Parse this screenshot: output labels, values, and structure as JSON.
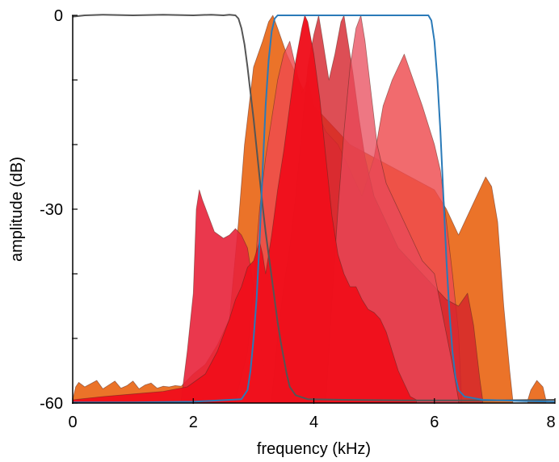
{
  "colors": {
    "background": "#ffffff",
    "axis": "#000000",
    "orange": "#ea6b1e",
    "red": "#f0101c",
    "light_red": "#ee4a4e",
    "crimson": "#e8223a",
    "dark_red": "#d4222a",
    "gray_line": "#555555",
    "blue_line": "#2a7ab8"
  },
  "chart_data": {
    "type": "area",
    "title": "",
    "xlabel": "frequency (kHz)",
    "ylabel": "amplitude (dB)",
    "xlim": [
      0,
      8
    ],
    "ylim": [
      -60,
      0
    ],
    "xticks": [
      0,
      2,
      4,
      6,
      8
    ],
    "xtick_labels": [
      "0",
      "2",
      "4",
      "6",
      "8"
    ],
    "yticks": [
      -60,
      -50,
      -40,
      -30,
      -20,
      -10,
      0
    ],
    "ytick_labels": [
      "-60",
      "",
      "",
      "-30",
      "",
      "",
      "0"
    ],
    "grid": false,
    "legend": "none",
    "series": [
      {
        "kind": "fill",
        "color": "#ea6b1e",
        "opacity": 0.95,
        "points": [
          [
            0,
            -59.5
          ],
          [
            0.05,
            -57.5
          ],
          [
            0.1,
            -56.8
          ],
          [
            0.2,
            -57.5
          ],
          [
            0.3,
            -57
          ],
          [
            0.4,
            -56.5
          ],
          [
            0.5,
            -57.8
          ],
          [
            0.6,
            -57.2
          ],
          [
            0.7,
            -56.6
          ],
          [
            0.8,
            -57.7
          ],
          [
            0.9,
            -57.3
          ],
          [
            1.0,
            -56.6
          ],
          [
            1.1,
            -57.8
          ],
          [
            1.2,
            -57.2
          ],
          [
            1.3,
            -56.9
          ],
          [
            1.4,
            -57.7
          ],
          [
            1.5,
            -57.4
          ],
          [
            1.6,
            -57.5
          ],
          [
            1.7,
            -57.3
          ],
          [
            1.8,
            -57.4
          ],
          [
            2.0,
            -55.5
          ],
          [
            2.2,
            -54
          ],
          [
            2.4,
            -51
          ],
          [
            2.6,
            -47
          ],
          [
            2.75,
            -32
          ],
          [
            2.85,
            -20
          ],
          [
            3.0,
            -8
          ],
          [
            3.15,
            -4
          ],
          [
            3.25,
            -1
          ],
          [
            3.32,
            0
          ],
          [
            3.4,
            -2
          ],
          [
            3.55,
            -6
          ],
          [
            3.7,
            -9
          ],
          [
            3.85,
            -12
          ],
          [
            4.0,
            -14
          ],
          [
            4.2,
            -16
          ],
          [
            4.4,
            -18
          ],
          [
            4.6,
            -20
          ],
          [
            4.8,
            -21
          ],
          [
            5.0,
            -22
          ],
          [
            5.2,
            -23
          ],
          [
            5.4,
            -24
          ],
          [
            5.6,
            -25
          ],
          [
            5.8,
            -26
          ],
          [
            6.0,
            -27
          ],
          [
            6.2,
            -30
          ],
          [
            6.4,
            -34
          ],
          [
            6.55,
            -31
          ],
          [
            6.7,
            -28
          ],
          [
            6.85,
            -25
          ],
          [
            6.95,
            -26.5
          ],
          [
            7.05,
            -32
          ],
          [
            7.15,
            -45
          ],
          [
            7.25,
            -55
          ],
          [
            7.3,
            -59.5
          ]
        ]
      },
      {
        "kind": "fill",
        "color": "#e8223a",
        "opacity": 0.9,
        "points": [
          [
            1.8,
            -59.5
          ],
          [
            1.9,
            -52
          ],
          [
            2.0,
            -43
          ],
          [
            2.05,
            -30
          ],
          [
            2.1,
            -27
          ],
          [
            2.15,
            -28.5
          ],
          [
            2.25,
            -31
          ],
          [
            2.35,
            -33.5
          ],
          [
            2.5,
            -34.5
          ],
          [
            2.6,
            -34
          ],
          [
            2.7,
            -33
          ],
          [
            2.8,
            -34
          ],
          [
            2.9,
            -36
          ],
          [
            3.0,
            -42
          ],
          [
            3.1,
            -50
          ],
          [
            3.2,
            -56
          ],
          [
            3.3,
            -59
          ],
          [
            3.4,
            -59.5
          ]
        ]
      },
      {
        "kind": "fill",
        "color": "#ee4a4e",
        "opacity": 0.82,
        "points": [
          [
            2.7,
            -59.5
          ],
          [
            2.9,
            -52
          ],
          [
            3.0,
            -42
          ],
          [
            3.1,
            -30
          ],
          [
            3.2,
            -22
          ],
          [
            3.3,
            -16
          ],
          [
            3.4,
            -10
          ],
          [
            3.5,
            -6
          ],
          [
            3.6,
            -4
          ],
          [
            3.7,
            -8
          ],
          [
            3.8,
            -12
          ],
          [
            3.9,
            -10
          ],
          [
            4.0,
            -14
          ],
          [
            4.2,
            -18
          ],
          [
            4.4,
            -20
          ],
          [
            4.6,
            -24
          ],
          [
            4.8,
            -28
          ],
          [
            5.0,
            -22
          ],
          [
            5.15,
            -14
          ],
          [
            5.3,
            -10
          ],
          [
            5.5,
            -6
          ],
          [
            5.65,
            -10
          ],
          [
            5.8,
            -14
          ],
          [
            5.9,
            -17
          ],
          [
            6.0,
            -20
          ],
          [
            6.1,
            -24
          ],
          [
            6.2,
            -32
          ],
          [
            6.3,
            -40
          ],
          [
            6.4,
            -49
          ],
          [
            6.45,
            -59.5
          ]
        ]
      },
      {
        "kind": "fill",
        "color": "#d4222a",
        "opacity": 0.8,
        "points": [
          [
            3.3,
            -59.5
          ],
          [
            3.4,
            -50
          ],
          [
            3.5,
            -42
          ],
          [
            3.6,
            -36
          ],
          [
            3.7,
            -28
          ],
          [
            3.8,
            -18
          ],
          [
            3.9,
            -8
          ],
          [
            4.0,
            -3
          ],
          [
            4.08,
            0
          ],
          [
            4.15,
            -4
          ],
          [
            4.25,
            -10
          ],
          [
            4.35,
            -6
          ],
          [
            4.45,
            -1
          ],
          [
            4.5,
            0
          ],
          [
            4.55,
            -3
          ],
          [
            4.65,
            -9
          ],
          [
            4.75,
            -16
          ],
          [
            4.85,
            -22
          ],
          [
            5.0,
            -28
          ],
          [
            5.2,
            -32
          ],
          [
            5.4,
            -36
          ],
          [
            5.6,
            -38
          ],
          [
            5.8,
            -40
          ],
          [
            6.0,
            -42
          ],
          [
            6.2,
            -44
          ],
          [
            6.4,
            -45
          ],
          [
            6.55,
            -43
          ],
          [
            6.65,
            -48
          ],
          [
            6.75,
            -56
          ],
          [
            6.8,
            -59.5
          ]
        ]
      },
      {
        "kind": "fill",
        "color": "#e84a5a",
        "opacity": 0.75,
        "points": [
          [
            4.2,
            -59.5
          ],
          [
            4.3,
            -44
          ],
          [
            4.4,
            -30
          ],
          [
            4.5,
            -18
          ],
          [
            4.6,
            -8
          ],
          [
            4.7,
            -2
          ],
          [
            4.78,
            0
          ],
          [
            4.85,
            -4
          ],
          [
            4.95,
            -12
          ],
          [
            5.05,
            -20
          ],
          [
            5.2,
            -26
          ],
          [
            5.4,
            -30
          ],
          [
            5.6,
            -34
          ],
          [
            5.8,
            -38
          ],
          [
            6.0,
            -40
          ],
          [
            6.15,
            -47
          ],
          [
            6.3,
            -54
          ],
          [
            6.4,
            -59.5
          ]
        ]
      },
      {
        "kind": "fill",
        "color": "#f0101c",
        "opacity": 0.97,
        "points": [
          [
            0,
            -59.5
          ],
          [
            0.5,
            -59
          ],
          [
            1.0,
            -58.6
          ],
          [
            1.5,
            -58.2
          ],
          [
            1.9,
            -57.5
          ],
          [
            2.2,
            -55.5
          ],
          [
            2.4,
            -52
          ],
          [
            2.6,
            -47
          ],
          [
            2.7,
            -44
          ],
          [
            2.8,
            -42
          ],
          [
            2.9,
            -39
          ],
          [
            3.0,
            -38
          ],
          [
            3.1,
            -35
          ],
          [
            3.15,
            -37
          ],
          [
            3.2,
            -40
          ],
          [
            3.3,
            -34
          ],
          [
            3.4,
            -27
          ],
          [
            3.5,
            -21
          ],
          [
            3.6,
            -14
          ],
          [
            3.7,
            -7
          ],
          [
            3.8,
            -2
          ],
          [
            3.85,
            0
          ],
          [
            3.9,
            -1
          ],
          [
            4.0,
            -6
          ],
          [
            4.1,
            -13
          ],
          [
            4.2,
            -22
          ],
          [
            4.3,
            -31
          ],
          [
            4.4,
            -37
          ],
          [
            4.5,
            -40
          ],
          [
            4.6,
            -42
          ],
          [
            4.7,
            -42
          ],
          [
            4.8,
            -44
          ],
          [
            4.9,
            -45.5
          ],
          [
            5.0,
            -46
          ],
          [
            5.1,
            -47
          ],
          [
            5.2,
            -49
          ],
          [
            5.3,
            -52
          ],
          [
            5.4,
            -55
          ],
          [
            5.5,
            -57
          ],
          [
            5.6,
            -59
          ],
          [
            5.7,
            -59.5
          ]
        ]
      },
      {
        "kind": "fill",
        "color": "#ea6b1e",
        "opacity": 0.95,
        "points": [
          [
            7.55,
            -59.5
          ],
          [
            7.6,
            -58
          ],
          [
            7.7,
            -56.5
          ],
          [
            7.8,
            -57.5
          ],
          [
            7.85,
            -59.5
          ]
        ]
      },
      {
        "kind": "line",
        "color": "#555555",
        "points": [
          [
            0,
            -0.2
          ],
          [
            0.2,
            0
          ],
          [
            0.5,
            0.1
          ],
          [
            1.0,
            0
          ],
          [
            1.5,
            0.1
          ],
          [
            2.0,
            0
          ],
          [
            2.3,
            0.1
          ],
          [
            2.5,
            0
          ],
          [
            2.6,
            0.1
          ],
          [
            2.7,
            0
          ],
          [
            2.75,
            -0.5
          ],
          [
            2.8,
            -2
          ],
          [
            2.85,
            -4.5
          ],
          [
            2.9,
            -8
          ],
          [
            2.95,
            -12
          ],
          [
            3.0,
            -16
          ],
          [
            3.05,
            -20.5
          ],
          [
            3.1,
            -25
          ],
          [
            3.15,
            -29.5
          ],
          [
            3.2,
            -33.5
          ],
          [
            3.25,
            -37
          ],
          [
            3.3,
            -40.5
          ],
          [
            3.35,
            -44
          ],
          [
            3.4,
            -47.5
          ],
          [
            3.45,
            -50.5
          ],
          [
            3.5,
            -53
          ],
          [
            3.55,
            -55.5
          ],
          [
            3.6,
            -57.5
          ],
          [
            3.7,
            -58.8
          ],
          [
            3.9,
            -59.4
          ],
          [
            4.5,
            -59.5
          ],
          [
            5.5,
            -59.6
          ],
          [
            6.5,
            -59.6
          ],
          [
            7.0,
            -59.6
          ],
          [
            8.0,
            -59.5
          ]
        ]
      },
      {
        "kind": "line",
        "color": "#2a7ab8",
        "points": [
          [
            0,
            -59.9
          ],
          [
            1.0,
            -59.9
          ],
          [
            2.0,
            -59.8
          ],
          [
            2.8,
            -59.4
          ],
          [
            2.9,
            -58
          ],
          [
            2.95,
            -55
          ],
          [
            3.0,
            -50
          ],
          [
            3.05,
            -44
          ],
          [
            3.1,
            -35
          ],
          [
            3.15,
            -24
          ],
          [
            3.2,
            -14
          ],
          [
            3.25,
            -7
          ],
          [
            3.3,
            -2.5
          ],
          [
            3.35,
            -0.5
          ],
          [
            3.4,
            0
          ],
          [
            4.0,
            0
          ],
          [
            4.5,
            0
          ],
          [
            5.0,
            0
          ],
          [
            5.5,
            0
          ],
          [
            5.9,
            0
          ],
          [
            5.95,
            -0.8
          ],
          [
            6.0,
            -4
          ],
          [
            6.05,
            -10
          ],
          [
            6.1,
            -18
          ],
          [
            6.15,
            -28
          ],
          [
            6.2,
            -38
          ],
          [
            6.25,
            -46
          ],
          [
            6.3,
            -52
          ],
          [
            6.35,
            -56
          ],
          [
            6.4,
            -58
          ],
          [
            6.5,
            -59
          ],
          [
            6.8,
            -59.5
          ],
          [
            7.5,
            -59.7
          ],
          [
            8.0,
            -59.8
          ]
        ]
      }
    ]
  }
}
